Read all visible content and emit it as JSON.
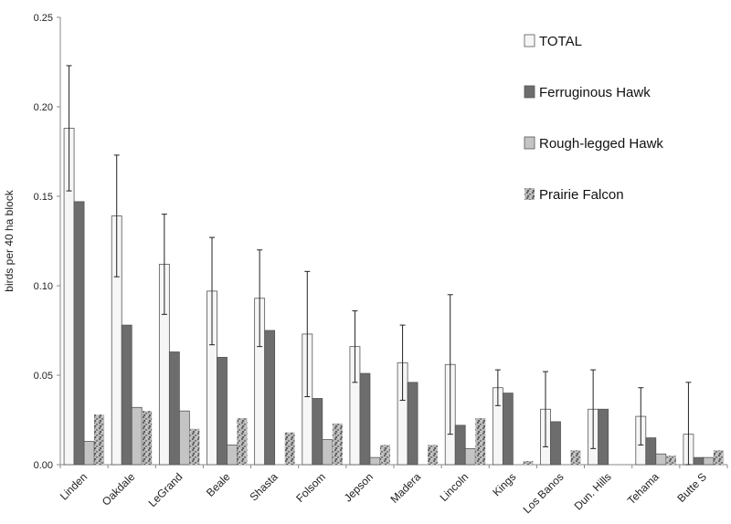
{
  "chart_data": {
    "type": "bar",
    "ylabel": "birds per 40 ha block",
    "ylim": [
      0,
      0.25
    ],
    "yticks": [
      "0.00",
      "0.05",
      "0.10",
      "0.15",
      "0.20",
      "0.25"
    ],
    "grid": false,
    "legend_position": "top-right",
    "categories": [
      "Linden",
      "Oakdale",
      "LeGrand",
      "Beale",
      "Shasta",
      "Folsom",
      "Jepson",
      "Madera",
      "Lincoln",
      "Kings",
      "Los Banos",
      "Dun. Hills",
      "Tehama",
      "Butte S"
    ],
    "series": [
      {
        "name": "TOTAL",
        "color": "#f6f6f6",
        "pattern": "plain",
        "values": [
          0.188,
          0.139,
          0.112,
          0.097,
          0.093,
          0.073,
          0.066,
          0.057,
          0.056,
          0.043,
          0.031,
          0.031,
          0.027,
          0.017
        ],
        "error": [
          0.035,
          0.034,
          0.028,
          0.03,
          0.027,
          0.035,
          0.02,
          0.021,
          0.039,
          0.01,
          0.021,
          0.022,
          0.016,
          0.029
        ]
      },
      {
        "name": "Ferruginous Hawk",
        "color": "#6d6d6d",
        "pattern": "plain",
        "values": [
          0.147,
          0.078,
          0.063,
          0.06,
          0.075,
          0.037,
          0.051,
          0.046,
          0.022,
          0.04,
          0.024,
          0.031,
          0.015,
          0.004
        ]
      },
      {
        "name": "Rough-legged Hawk",
        "color": "#c4c4c4",
        "pattern": "plain",
        "values": [
          0.013,
          0.032,
          0.03,
          0.011,
          0.0,
          0.014,
          0.004,
          0.0,
          0.009,
          0.0,
          0.0,
          0.0,
          0.006,
          0.004
        ]
      },
      {
        "name": "Prairie Falcon",
        "color": "#9a9a9a",
        "pattern": "speckle",
        "values": [
          0.028,
          0.03,
          0.02,
          0.026,
          0.018,
          0.023,
          0.011,
          0.011,
          0.026,
          0.002,
          0.008,
          0.0,
          0.005,
          0.008
        ]
      }
    ]
  }
}
